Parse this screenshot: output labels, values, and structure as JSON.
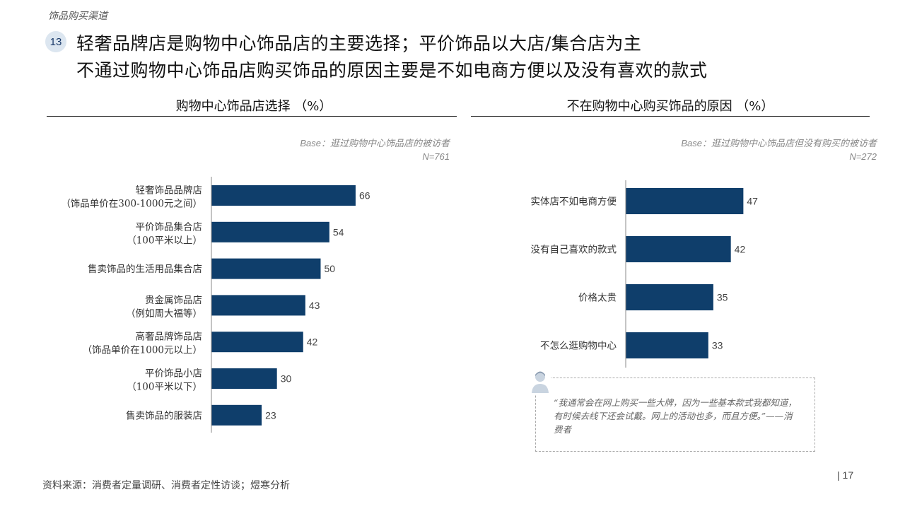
{
  "header": {
    "section": "饰品购买渠道",
    "slide_number": "13",
    "headline_1": "轻奢品牌店是购物中心饰品店的主要选择；平价饰品以大店/集合店为主",
    "headline_2": "不通过购物中心饰品店购买饰品的原因主要是不如电商方便以及没有喜欢的款式"
  },
  "left_panel": {
    "title": "购物中心饰品店选择 （%）",
    "base_label": "Base",
    "base_text": "：逛过购物中心饰品店的被访者",
    "n": "N=761"
  },
  "right_panel": {
    "title": "不在购物中心购买饰品的原因 （%）",
    "base_label": "Base",
    "base_text": "：逛过购物中心饰品店但没有购买的被访者",
    "n": "N=272"
  },
  "chart_data": [
    {
      "type": "bar",
      "orientation": "horizontal",
      "title": "购物中心饰品店选择 （%）",
      "categories": [
        [
          "轻奢饰品品牌店",
          "（饰品单价在300-1000元之间）"
        ],
        [
          "平价饰品集合店",
          "（100平米以上）"
        ],
        [
          "售卖饰品的生活用品集合店"
        ],
        [
          "贵金属饰品店",
          "（例如周大福等）"
        ],
        [
          "高奢品牌饰品店",
          "（饰品单价在1000元以上）"
        ],
        [
          "平价饰品小店",
          "（100平米以下）"
        ],
        [
          "售卖饰品的服装店"
        ]
      ],
      "values": [
        66,
        54,
        50,
        43,
        42,
        30,
        23
      ],
      "xlim": [
        0,
        100
      ],
      "bar_color": "#0f3e6b"
    },
    {
      "type": "bar",
      "orientation": "horizontal",
      "title": "不在购物中心购买饰品的原因 （%）",
      "categories": [
        [
          "实体店不如电商方便"
        ],
        [
          "没有自己喜欢的款式"
        ],
        [
          "价格太贵"
        ],
        [
          "不怎么逛购物中心"
        ]
      ],
      "values": [
        47,
        42,
        35,
        33
      ],
      "xlim": [
        0,
        100
      ],
      "bar_color": "#0f3e6b"
    }
  ],
  "quote": {
    "text": "“我通常会在网上购买一些大牌，因为一些基本款式我都知道，有时候去线下还会试戴。网上的活动也多，而且方便。”——消费者",
    "avatar_icon": "person-icon"
  },
  "footer": {
    "source": "资料来源：消费者定量调研、消费者定性访谈；煜寒分析",
    "page": "| 17"
  }
}
